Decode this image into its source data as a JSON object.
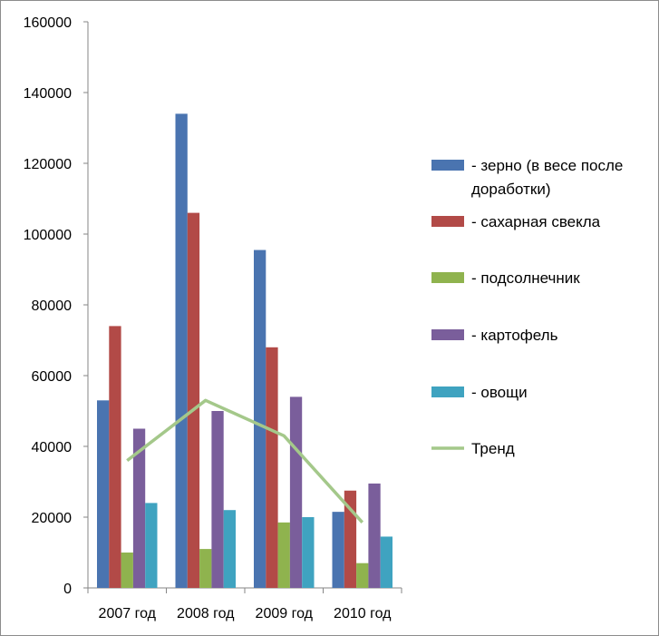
{
  "chart_data": {
    "type": "bar",
    "categories": [
      "2007 год",
      "2008 год",
      "2009 год",
      "2010 год"
    ],
    "series": [
      {
        "name": "- зерно (в весе после доработки)",
        "values": [
          53000,
          134000,
          95500,
          21500
        ],
        "color": "#4a74b0"
      },
      {
        "name": "- сахарная свекла",
        "values": [
          74000,
          106000,
          68000,
          27500
        ],
        "color": "#b24a47"
      },
      {
        "name": "- подсолнечник",
        "values": [
          10000,
          11000,
          18500,
          7000
        ],
        "color": "#8fb34e"
      },
      {
        "name": "- картофель",
        "values": [
          45000,
          50000,
          54000,
          29500
        ],
        "color": "#7a5e9b"
      },
      {
        "name": "- овощи",
        "values": [
          24000,
          22000,
          20000,
          14500
        ],
        "color": "#3fa3c0"
      }
    ],
    "trend": {
      "name": "Тренд",
      "values": [
        36000,
        53000,
        43000,
        18500
      ],
      "color": "#a4c88a"
    },
    "ylim": [
      0,
      160000
    ],
    "yticks": [
      "0",
      "20000",
      "40000",
      "60000",
      "80000",
      "100000",
      "120000",
      "140000",
      "160000"
    ],
    "grid": false,
    "legend": "right"
  }
}
